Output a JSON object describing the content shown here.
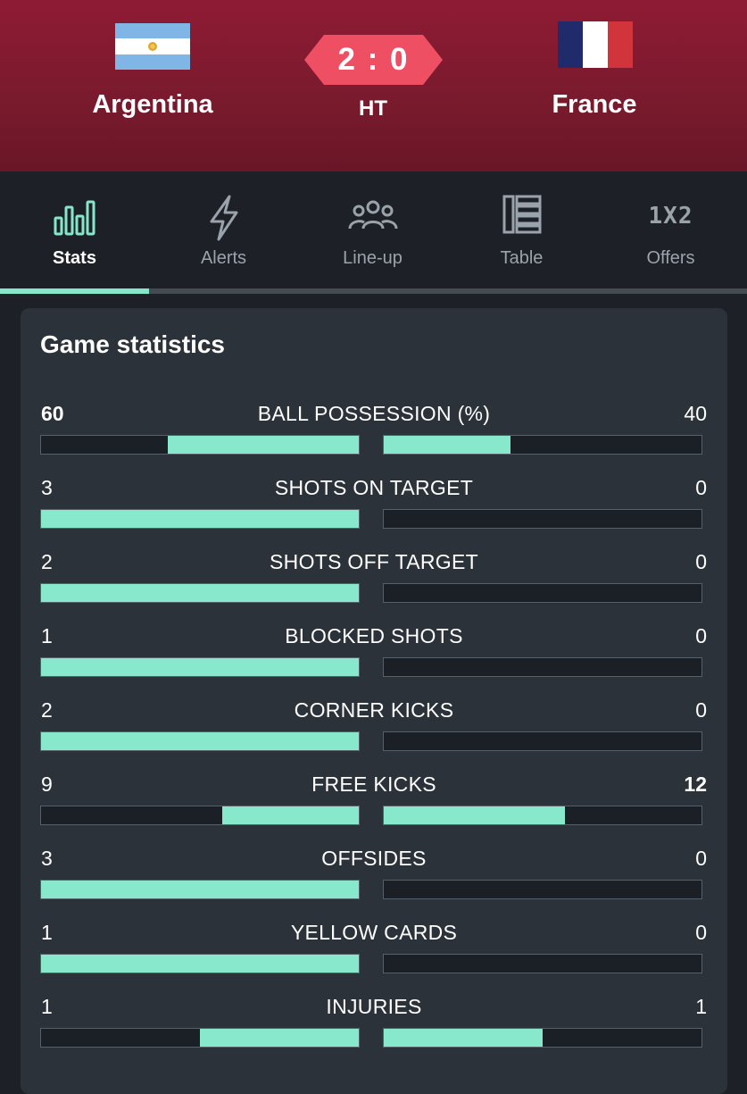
{
  "match": {
    "home_team": "Argentina",
    "away_team": "France",
    "score": "2 : 0",
    "status": "HT",
    "accent_color": "#87e8cc",
    "header_color": "#8e1b34"
  },
  "tabs": [
    {
      "label": "Stats",
      "icon": "bar-chart-icon",
      "active": true
    },
    {
      "label": "Alerts",
      "icon": "lightning-icon",
      "active": false
    },
    {
      "label": "Line-up",
      "icon": "people-icon",
      "active": false
    },
    {
      "label": "Table",
      "icon": "table-icon",
      "active": false
    },
    {
      "label": "Offers",
      "icon": "1x2-icon",
      "active": false
    }
  ],
  "offers_icon_text": "1X2",
  "statistics": {
    "title": "Game statistics",
    "rows": [
      {
        "label": "BALL POSSESSION (%)",
        "home": "60",
        "away": "40",
        "home_share": 0.6,
        "away_share": 0.4,
        "highlight": "home"
      },
      {
        "label": "SHOTS ON TARGET",
        "home": "3",
        "away": "0",
        "home_share": 1.0,
        "away_share": 0.0,
        "highlight": ""
      },
      {
        "label": "SHOTS OFF TARGET",
        "home": "2",
        "away": "0",
        "home_share": 1.0,
        "away_share": 0.0,
        "highlight": ""
      },
      {
        "label": "BLOCKED SHOTS",
        "home": "1",
        "away": "0",
        "home_share": 1.0,
        "away_share": 0.0,
        "highlight": ""
      },
      {
        "label": "CORNER KICKS",
        "home": "2",
        "away": "0",
        "home_share": 1.0,
        "away_share": 0.0,
        "highlight": ""
      },
      {
        "label": "FREE KICKS",
        "home": "9",
        "away": "12",
        "home_share": 0.43,
        "away_share": 0.57,
        "highlight": "away"
      },
      {
        "label": "OFFSIDES",
        "home": "3",
        "away": "0",
        "home_share": 1.0,
        "away_share": 0.0,
        "highlight": ""
      },
      {
        "label": "YELLOW CARDS",
        "home": "1",
        "away": "0",
        "home_share": 1.0,
        "away_share": 0.0,
        "highlight": ""
      },
      {
        "label": "INJURIES",
        "home": "1",
        "away": "1",
        "home_share": 0.5,
        "away_share": 0.5,
        "highlight": ""
      }
    ]
  }
}
